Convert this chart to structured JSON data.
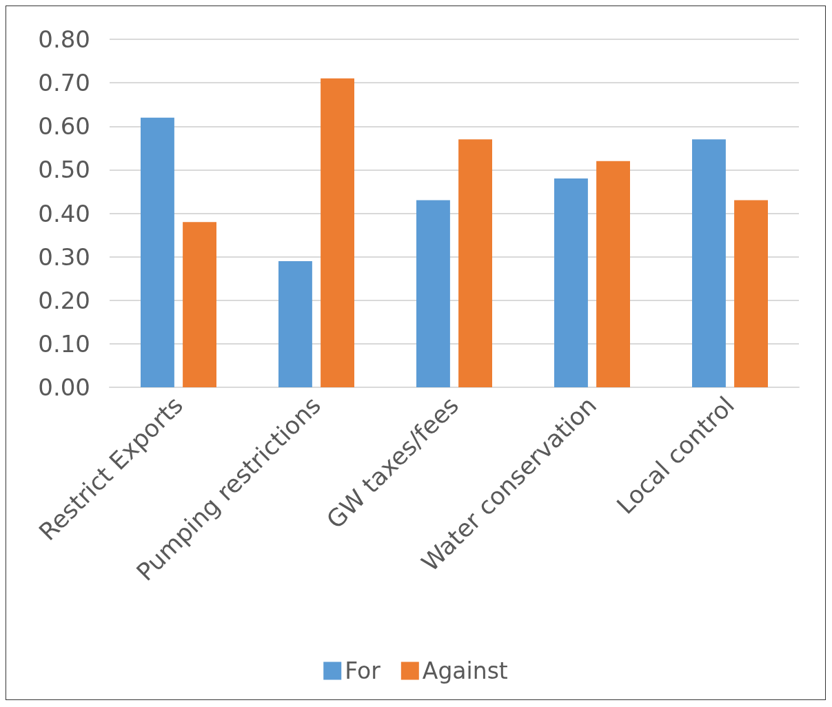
{
  "chart_data": {
    "type": "bar",
    "categories": [
      "Restrict Exports",
      "Pumping restrictions",
      "GW taxes/fees",
      "Water conservation",
      "Local control"
    ],
    "series": [
      {
        "name": "For",
        "color": "#5b9bd5",
        "values": [
          0.62,
          0.29,
          0.43,
          0.48,
          0.57
        ]
      },
      {
        "name": "Against",
        "color": "#ed7d31",
        "values": [
          0.38,
          0.71,
          0.57,
          0.52,
          0.43
        ]
      }
    ],
    "ylim": [
      0,
      0.8
    ],
    "yticks": [
      {
        "value": 0,
        "label": "0.00"
      },
      {
        "value": 0.1,
        "label": "0.10"
      },
      {
        "value": 0.2,
        "label": "0.20"
      },
      {
        "value": 0.3,
        "label": "0.30"
      },
      {
        "value": 0.4,
        "label": "0.40"
      },
      {
        "value": 0.5,
        "label": "0.50"
      },
      {
        "value": 0.6,
        "label": "0.60"
      },
      {
        "value": 0.7,
        "label": "0.70"
      },
      {
        "value": 0.8,
        "label": "0.80"
      }
    ],
    "grid": "y",
    "legend": "bottom"
  }
}
